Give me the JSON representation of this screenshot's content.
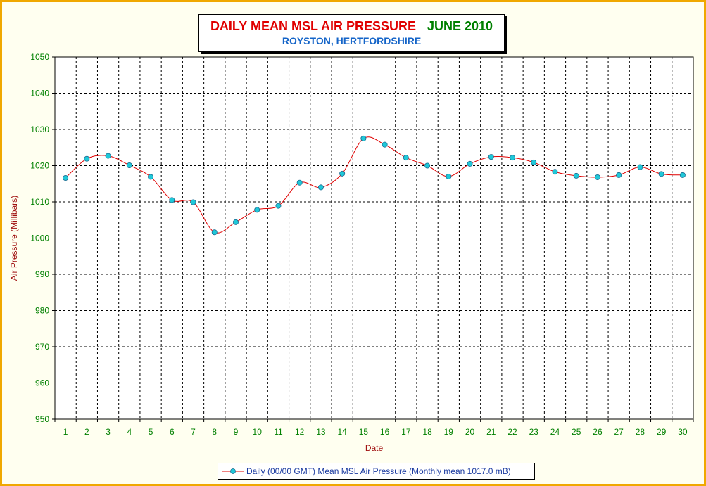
{
  "title": {
    "main": "DAILY MEAN MSL AIR PRESSURE",
    "month": "JUNE 2010",
    "subtitle": "ROYSTON, HERTFORDSHIRE"
  },
  "legend": {
    "label": "Daily (00/00 GMT) Mean MSL Air Pressure (Monthly mean 1017.0 mB)"
  },
  "colors": {
    "frame_border": "#f0a800",
    "background": "#fffff0",
    "line": "#e00000",
    "marker_fill": "#20c8d8",
    "tick_labels": "#008000",
    "axis_titles": "#a01010"
  },
  "chart_data": {
    "type": "line",
    "title": "DAILY MEAN MSL AIR PRESSURE   JUNE 2010",
    "subtitle": "ROYSTON, HERTFORDSHIRE",
    "xlabel": "Date",
    "ylabel": "Air Pressure (Millibars)",
    "ylim": [
      950,
      1050
    ],
    "yticks": [
      950,
      960,
      970,
      980,
      990,
      1000,
      1010,
      1020,
      1030,
      1040,
      1050
    ],
    "grid": true,
    "legend_position": "bottom",
    "x": [
      1,
      2,
      3,
      4,
      5,
      6,
      7,
      8,
      9,
      10,
      11,
      12,
      13,
      14,
      15,
      16,
      17,
      18,
      19,
      20,
      21,
      22,
      23,
      24,
      25,
      26,
      27,
      28,
      29,
      30
    ],
    "series": [
      {
        "name": "Daily (00/00 GMT) Mean MSL Air Pressure (Monthly mean 1017.0 mB)",
        "values": [
          1016.6,
          1021.9,
          1022.7,
          1020.1,
          1016.9,
          1010.5,
          1009.9,
          1001.6,
          1004.4,
          1007.8,
          1008.9,
          1015.3,
          1014.0,
          1017.8,
          1027.5,
          1025.8,
          1022.2,
          1020.0,
          1017.0,
          1020.5,
          1022.4,
          1022.2,
          1020.9,
          1018.3,
          1017.2,
          1016.8,
          1017.4,
          1019.6,
          1017.7,
          1017.4
        ]
      }
    ]
  }
}
